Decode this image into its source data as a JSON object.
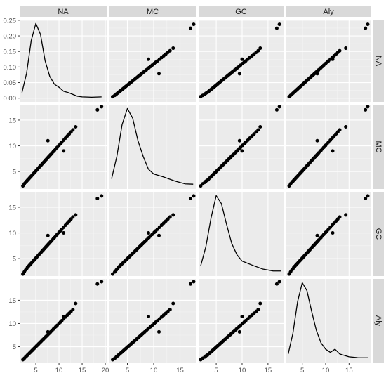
{
  "chart_data": {
    "type": "scatter-matrix",
    "title": "",
    "variables": [
      "NA",
      "MC",
      "GC",
      "Aly"
    ],
    "colors": {
      "panel_bg": "#ebebeb",
      "grid_major": "#ffffff",
      "strip_bg": "#d9d9d9",
      "point": "#000000",
      "density_line": "#000000"
    },
    "column_axes": [
      {
        "variable": "NA",
        "range": [
          1.5,
          20.3
        ],
        "ticks": [
          5,
          10,
          15,
          20
        ]
      },
      {
        "variable": "MC",
        "range": [
          1.6,
          18.0
        ],
        "ticks": [
          5,
          10,
          15
        ]
      },
      {
        "variable": "GC",
        "range": [
          1.6,
          18.0
        ],
        "ticks": [
          5,
          10,
          15
        ]
      },
      {
        "variable": "Aly",
        "range": [
          1.6,
          19.6
        ],
        "ticks": [
          5,
          10,
          15
        ]
      }
    ],
    "row_axes": [
      {
        "variable": "NA",
        "range": [
          -0.012,
          0.252
        ],
        "ticks": [
          0.0,
          0.05,
          0.1,
          0.15,
          0.2,
          0.25
        ],
        "tick_labels": [
          "0.00",
          "0.05",
          "0.10",
          "0.15",
          "0.20",
          "0.25"
        ]
      },
      {
        "variable": "MC",
        "range": [
          1.6,
          18.0
        ],
        "ticks": [
          5,
          10,
          15
        ]
      },
      {
        "variable": "GC",
        "range": [
          1.6,
          18.0
        ],
        "ticks": [
          5,
          10,
          15
        ]
      },
      {
        "variable": "Aly",
        "range": [
          1.6,
          19.6
        ],
        "ticks": [
          5,
          10,
          15
        ]
      }
    ],
    "density_curves": {
      "NA": [
        [
          2,
          0.018
        ],
        [
          3,
          0.08
        ],
        [
          4,
          0.185
        ],
        [
          5,
          0.24
        ],
        [
          6,
          0.205
        ],
        [
          7,
          0.12
        ],
        [
          8,
          0.07
        ],
        [
          9,
          0.045
        ],
        [
          10,
          0.035
        ],
        [
          11,
          0.022
        ],
        [
          12,
          0.018
        ],
        [
          13,
          0.012
        ],
        [
          14,
          0.006
        ],
        [
          15,
          0.004
        ],
        [
          17,
          0.003
        ],
        [
          19.2,
          0.004
        ]
      ],
      "MC": [
        [
          2,
          0.02
        ],
        [
          3,
          0.09
        ],
        [
          4,
          0.19
        ],
        [
          5,
          0.24
        ],
        [
          6,
          0.21
        ],
        [
          7,
          0.14
        ],
        [
          8,
          0.09
        ],
        [
          9,
          0.05
        ],
        [
          10,
          0.035
        ],
        [
          12,
          0.025
        ],
        [
          14,
          0.013
        ],
        [
          16,
          0.004
        ],
        [
          17.5,
          0.003
        ]
      ],
      "GC": [
        [
          2,
          0.02
        ],
        [
          3,
          0.08
        ],
        [
          4,
          0.17
        ],
        [
          5,
          0.24
        ],
        [
          6,
          0.215
        ],
        [
          7,
          0.15
        ],
        [
          8,
          0.09
        ],
        [
          9,
          0.055
        ],
        [
          10,
          0.035
        ],
        [
          12,
          0.022
        ],
        [
          14,
          0.01
        ],
        [
          16,
          0.004
        ],
        [
          17.5,
          0.004
        ]
      ],
      "Aly": [
        [
          2,
          0.015
        ],
        [
          3,
          0.08
        ],
        [
          4,
          0.18
        ],
        [
          5,
          0.24
        ],
        [
          6,
          0.215
        ],
        [
          7,
          0.15
        ],
        [
          8,
          0.09
        ],
        [
          9,
          0.05
        ],
        [
          10,
          0.03
        ],
        [
          11,
          0.02
        ],
        [
          12,
          0.03
        ],
        [
          13,
          0.015
        ],
        [
          15,
          0.006
        ],
        [
          17,
          0.003
        ],
        [
          19,
          0.003
        ]
      ]
    },
    "points": {
      "NA": [
        2.2,
        2.5,
        2.8,
        3.0,
        3.2,
        3.4,
        3.6,
        3.8,
        4.0,
        4.2,
        4.4,
        4.6,
        4.8,
        5.0,
        5.2,
        5.4,
        5.6,
        5.8,
        6.0,
        6.2,
        6.4,
        6.6,
        6.8,
        7.0,
        7.2,
        7.4,
        7.6,
        7.8,
        8.0,
        8.2,
        8.5,
        8.8,
        9.0,
        9.3,
        9.6,
        10.0,
        10.3,
        10.6,
        11.0,
        11.4,
        11.8,
        12.2,
        12.6,
        13.0,
        13.6,
        7.6,
        11.0,
        18.3,
        19.2
      ],
      "MC": [
        2.2,
        2.6,
        2.9,
        3.1,
        3.3,
        3.5,
        3.7,
        3.9,
        4.1,
        4.3,
        4.5,
        4.7,
        4.9,
        5.1,
        5.3,
        5.5,
        5.7,
        5.9,
        6.1,
        6.3,
        6.5,
        6.7,
        6.9,
        7.1,
        7.3,
        7.5,
        7.7,
        7.9,
        8.1,
        8.3,
        8.6,
        8.9,
        9.1,
        9.4,
        9.7,
        10.1,
        10.4,
        10.7,
        11.1,
        11.5,
        11.9,
        12.3,
        12.7,
        13.1,
        13.7,
        11.0,
        9.0,
        17.0,
        17.6
      ],
      "GC": [
        2.0,
        2.4,
        2.8,
        3.0,
        3.3,
        3.5,
        3.7,
        3.9,
        4.1,
        4.3,
        4.5,
        4.7,
        4.9,
        5.1,
        5.3,
        5.5,
        5.7,
        5.9,
        6.1,
        6.3,
        6.5,
        6.7,
        6.9,
        7.1,
        7.3,
        7.5,
        7.7,
        7.9,
        8.1,
        8.3,
        8.6,
        8.9,
        9.1,
        9.4,
        9.7,
        10.1,
        10.4,
        10.7,
        11.1,
        11.5,
        11.9,
        12.3,
        12.7,
        13.1,
        13.5,
        9.5,
        10.0,
        16.7,
        17.2
      ],
      "Aly": [
        2.2,
        2.5,
        2.8,
        3.0,
        3.2,
        3.4,
        3.6,
        3.8,
        4.0,
        4.2,
        4.4,
        4.6,
        4.8,
        5.0,
        5.2,
        5.4,
        5.6,
        5.8,
        6.0,
        6.2,
        6.4,
        6.6,
        6.8,
        7.0,
        7.2,
        7.4,
        7.6,
        7.8,
        8.0,
        8.2,
        8.5,
        8.8,
        9.0,
        9.3,
        9.6,
        10.0,
        10.3,
        10.6,
        11.0,
        11.4,
        11.8,
        12.2,
        12.6,
        13.0,
        14.3,
        8.2,
        11.5,
        18.5,
        19.0
      ]
    },
    "grid": true,
    "legend": "none"
  }
}
